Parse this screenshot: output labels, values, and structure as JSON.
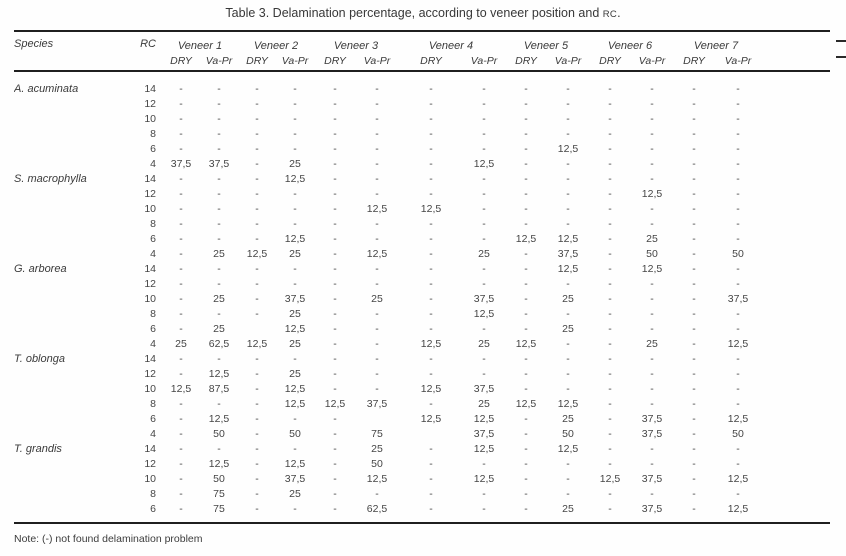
{
  "title": {
    "part1": "Table 3. Delamination percentage, according to veneer position and ",
    "rc": "RC",
    "part3": "."
  },
  "note": "Note: (-) not found delamination problem",
  "table": {
    "headers": {
      "species": "Species",
      "rc": "RC",
      "dry": "DRY",
      "vapr": "Va-Pr",
      "veneers": [
        "Veneer 1",
        "Veneer 2",
        "Veneer 3",
        "Veneer 4",
        "Veneer 5",
        "Veneer 6",
        "Veneer 7"
      ]
    },
    "groups": [
      {
        "species": "A. acuminata",
        "rows": [
          {
            "rc": "14",
            "values": [
              "-",
              "-",
              "-",
              "-",
              "-",
              "-",
              "-",
              "-",
              "-",
              "-",
              "-",
              "-",
              "-",
              "-"
            ]
          },
          {
            "rc": "12",
            "values": [
              "-",
              "-",
              "-",
              "-",
              "-",
              "-",
              "-",
              "-",
              "-",
              "-",
              "-",
              "-",
              "-",
              "-"
            ]
          },
          {
            "rc": "10",
            "values": [
              "-",
              "-",
              "-",
              "-",
              "-",
              "-",
              "-",
              "-",
              "-",
              "-",
              "-",
              "-",
              "-",
              "-"
            ]
          },
          {
            "rc": "8",
            "values": [
              "-",
              "-",
              "-",
              "-",
              "-",
              "-",
              "-",
              "-",
              "-",
              "-",
              "-",
              "-",
              "-",
              "-"
            ]
          },
          {
            "rc": "6",
            "values": [
              "-",
              "-",
              "-",
              "-",
              "-",
              "-",
              "-",
              "-",
              "-",
              "12,5",
              "-",
              "-",
              "-",
              "-"
            ]
          },
          {
            "rc": "4",
            "values": [
              "37,5",
              "37,5",
              "-",
              "25",
              "-",
              "-",
              "-",
              "12,5",
              "-",
              "-",
              "-",
              "-",
              "-",
              "-"
            ]
          }
        ]
      },
      {
        "species": "S. macrophylla",
        "rows": [
          {
            "rc": "14",
            "values": [
              "-",
              "-",
              "-",
              "12,5",
              "-",
              "-",
              "-",
              "-",
              "-",
              "-",
              "-",
              "-",
              "-",
              "-"
            ]
          },
          {
            "rc": "12",
            "values": [
              "-",
              "-",
              "-",
              "-",
              "-",
              "-",
              "-",
              "-",
              "-",
              "-",
              "-",
              "12,5",
              "-",
              "-"
            ]
          },
          {
            "rc": "10",
            "values": [
              "-",
              "-",
              "-",
              "-",
              "-",
              "12,5",
              "12,5",
              "-",
              "-",
              "-",
              "-",
              "-",
              "-",
              "-"
            ]
          },
          {
            "rc": "8",
            "values": [
              "-",
              "-",
              "-",
              "-",
              "-",
              "-",
              "-",
              "-",
              "-",
              "-",
              "-",
              "-",
              "-",
              "-"
            ]
          },
          {
            "rc": "6",
            "values": [
              "-",
              "-",
              "-",
              "12,5",
              "-",
              "-",
              "-",
              "-",
              "12,5",
              "12,5",
              "-",
              "25",
              "-",
              "-"
            ]
          },
          {
            "rc": "4",
            "values": [
              "-",
              "25",
              "12,5",
              "25",
              "-",
              "12,5",
              "-",
              "25",
              "-",
              "37,5",
              "-",
              "50",
              "-",
              "50"
            ]
          }
        ]
      },
      {
        "species": "G. arborea",
        "rows": [
          {
            "rc": "14",
            "values": [
              "-",
              "-",
              "-",
              "-",
              "-",
              "-",
              "-",
              "-",
              "-",
              "12,5",
              "-",
              "12,5",
              "-",
              "-"
            ]
          },
          {
            "rc": "12",
            "values": [
              "-",
              "-",
              "-",
              "-",
              "-",
              "-",
              "-",
              "-",
              "-",
              "-",
              "-",
              "-",
              "-",
              "-"
            ]
          },
          {
            "rc": "10",
            "values": [
              "-",
              "25",
              "-",
              "37,5",
              "-",
              "25",
              "-",
              "37,5",
              "-",
              "25",
              "-",
              "-",
              "-",
              "37,5"
            ]
          },
          {
            "rc": "8",
            "values": [
              "-",
              "-",
              "-",
              "25",
              "-",
              "-",
              "-",
              "12,5",
              "-",
              "-",
              "-",
              "-",
              "-",
              "-"
            ]
          },
          {
            "rc": "6",
            "values": [
              "-",
              "25",
              "",
              "12,5",
              "-",
              "-",
              "-",
              "-",
              "-",
              "25",
              "-",
              "-",
              "-",
              "-"
            ]
          },
          {
            "rc": "4",
            "values": [
              "25",
              "62,5",
              "12,5",
              "25",
              "-",
              "-",
              "12,5",
              "25",
              "12,5",
              "-",
              "-",
              "25",
              "-",
              "12,5"
            ]
          }
        ]
      },
      {
        "species": "T. oblonga",
        "rows": [
          {
            "rc": "14",
            "values": [
              "-",
              "-",
              "-",
              "-",
              "-",
              "-",
              "-",
              "-",
              "-",
              "-",
              "-",
              "-",
              "-",
              "-"
            ]
          },
          {
            "rc": "12",
            "values": [
              "-",
              "12,5",
              "-",
              "25",
              "-",
              "-",
              "-",
              "-",
              "-",
              "-",
              "-",
              "-",
              "-",
              "-"
            ]
          },
          {
            "rc": "10",
            "values": [
              "12,5",
              "87,5",
              "-",
              "12,5",
              "-",
              "-",
              "12,5",
              "37,5",
              "-",
              "-",
              "-",
              "-",
              "-",
              "-"
            ]
          },
          {
            "rc": "8",
            "values": [
              "-",
              "-",
              "-",
              "12,5",
              "12,5",
              "37,5",
              "-",
              "25",
              "12,5",
              "12,5",
              "-",
              "-",
              "-",
              "-"
            ]
          },
          {
            "rc": "6",
            "values": [
              "-",
              "12,5",
              "-",
              "-",
              "-",
              "",
              "12,5",
              "12,5",
              "-",
              "25",
              "-",
              "37,5",
              "-",
              "12,5"
            ]
          },
          {
            "rc": "4",
            "values": [
              "-",
              "50",
              "-",
              "50",
              "-",
              "75",
              "",
              "37,5",
              "-",
              "50",
              "-",
              "37,5",
              "-",
              "50"
            ]
          }
        ]
      },
      {
        "species": "T. grandis",
        "rows": [
          {
            "rc": "14",
            "values": [
              "-",
              "-",
              "-",
              "-",
              "-",
              "25",
              "-",
              "12,5",
              "-",
              "12,5",
              "-",
              "-",
              "-",
              "-"
            ]
          },
          {
            "rc": "12",
            "values": [
              "-",
              "12,5",
              "-",
              "12,5",
              "-",
              "50",
              "-",
              "-",
              "-",
              "-",
              "-",
              "-",
              "-",
              "-"
            ]
          },
          {
            "rc": "10",
            "values": [
              "-",
              "50",
              "-",
              "37,5",
              "-",
              "12,5",
              "-",
              "12,5",
              "-",
              "-",
              "12,5",
              "37,5",
              "-",
              "12,5"
            ]
          },
          {
            "rc": "8",
            "values": [
              "-",
              "75",
              "-",
              "25",
              "-",
              "-",
              "-",
              "-",
              "-",
              "-",
              "-",
              "-",
              "-",
              "-"
            ]
          },
          {
            "rc": "6",
            "values": [
              "-",
              "75",
              "-",
              "-",
              "-",
              "62,5",
              "-",
              "-",
              "-",
              "25",
              "-",
              "37,5",
              "-",
              "12,5"
            ]
          }
        ]
      }
    ]
  }
}
